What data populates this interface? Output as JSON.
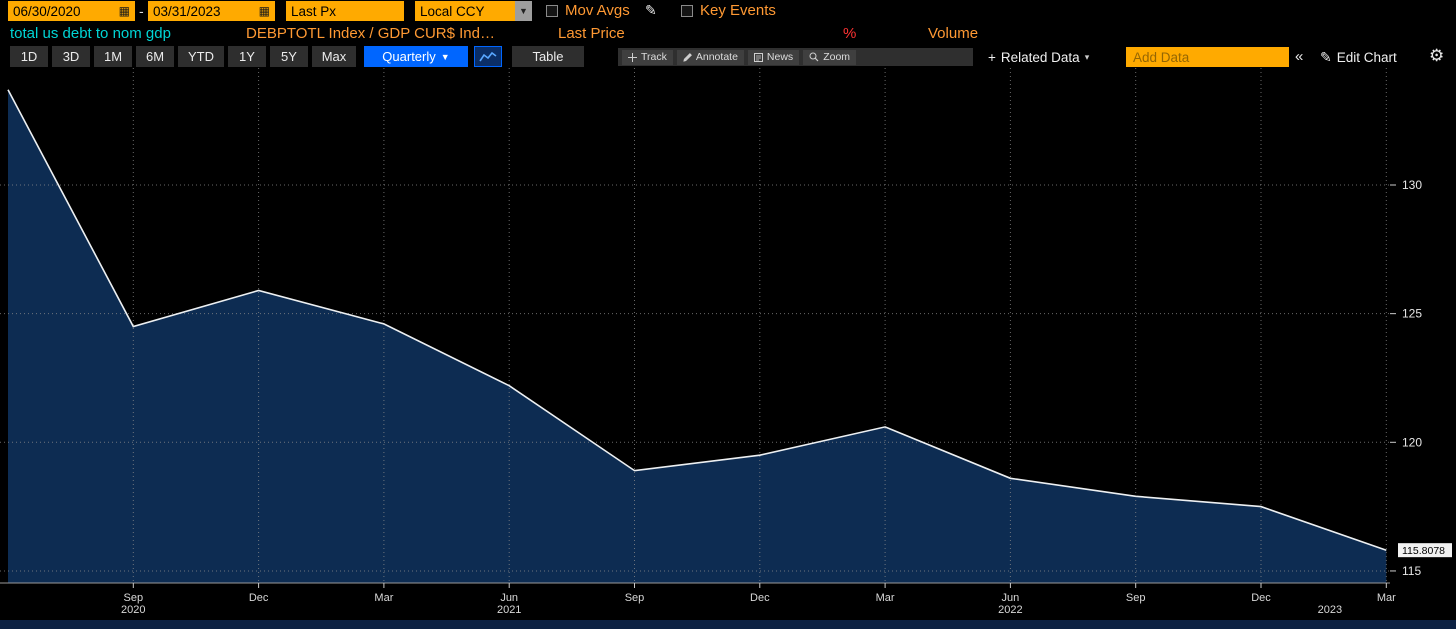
{
  "topbar": {
    "date_from": "06/30/2020",
    "date_separator": "-",
    "date_to": "03/31/2023",
    "price_source": "Last Px",
    "currency": "Local CCY",
    "mov_avgs": "Mov Avgs",
    "key_events": "Key Events"
  },
  "title_row": {
    "title": "total us debt to nom gdp",
    "security": "DEBPTOTL Index / GDP CUR$ Ind…",
    "field": "Last Price",
    "unit": "%",
    "volume": "Volume"
  },
  "toolbar": {
    "periods": [
      "1D",
      "3D",
      "1M",
      "6M",
      "YTD",
      "1Y",
      "5Y",
      "Max"
    ],
    "frequency": "Quarterly",
    "table": "Table",
    "tools": [
      "Track",
      "Annotate",
      "News",
      "Zoom"
    ],
    "related_data": "Related Data",
    "add_data_placeholder": "Add Data",
    "edit_chart": "Edit Chart"
  },
  "icons": {
    "calendar": "▦",
    "pencil": "✎",
    "dropdown": "▼",
    "caret": "▾",
    "plus": "+",
    "collapse": "«",
    "gear": "⚙"
  },
  "chart_data": {
    "type": "area",
    "title": "total us debt to nom gdp",
    "series_name": "DEBPTOTL Index / GDP CUR$ Index — Last Price",
    "unit": "%",
    "x_period_labels": [
      "Jun 2020",
      "Sep 2020",
      "Dec 2020",
      "Mar 2021",
      "Jun 2021",
      "Sep 2021",
      "Dec 2021",
      "Mar 2022",
      "Jun 2022",
      "Sep 2022",
      "Dec 2022",
      "Mar 2023"
    ],
    "values": [
      133.7,
      124.5,
      125.9,
      124.6,
      122.2,
      118.9,
      119.5,
      120.6,
      118.6,
      117.9,
      117.5,
      115.8078
    ],
    "x_tick_labels": [
      "Sep",
      "Dec",
      "Mar",
      "Jun",
      "Sep",
      "Dec",
      "Mar",
      "Jun",
      "Sep",
      "Dec",
      "Mar"
    ],
    "year_labels": [
      {
        "text": "2020",
        "i": 1
      },
      {
        "text": "2021",
        "i": 4
      },
      {
        "text": "2022",
        "i": 8
      },
      {
        "text": "2023",
        "i": 10.55
      }
    ],
    "yticks": [
      115,
      120,
      125,
      130
    ],
    "ylim": [
      114.4,
      134.6
    ],
    "last_price_label": "115.8078",
    "line_color": "#edf0f2",
    "fill_color": "#0d2c52",
    "grid": true,
    "legend_position": "none"
  }
}
